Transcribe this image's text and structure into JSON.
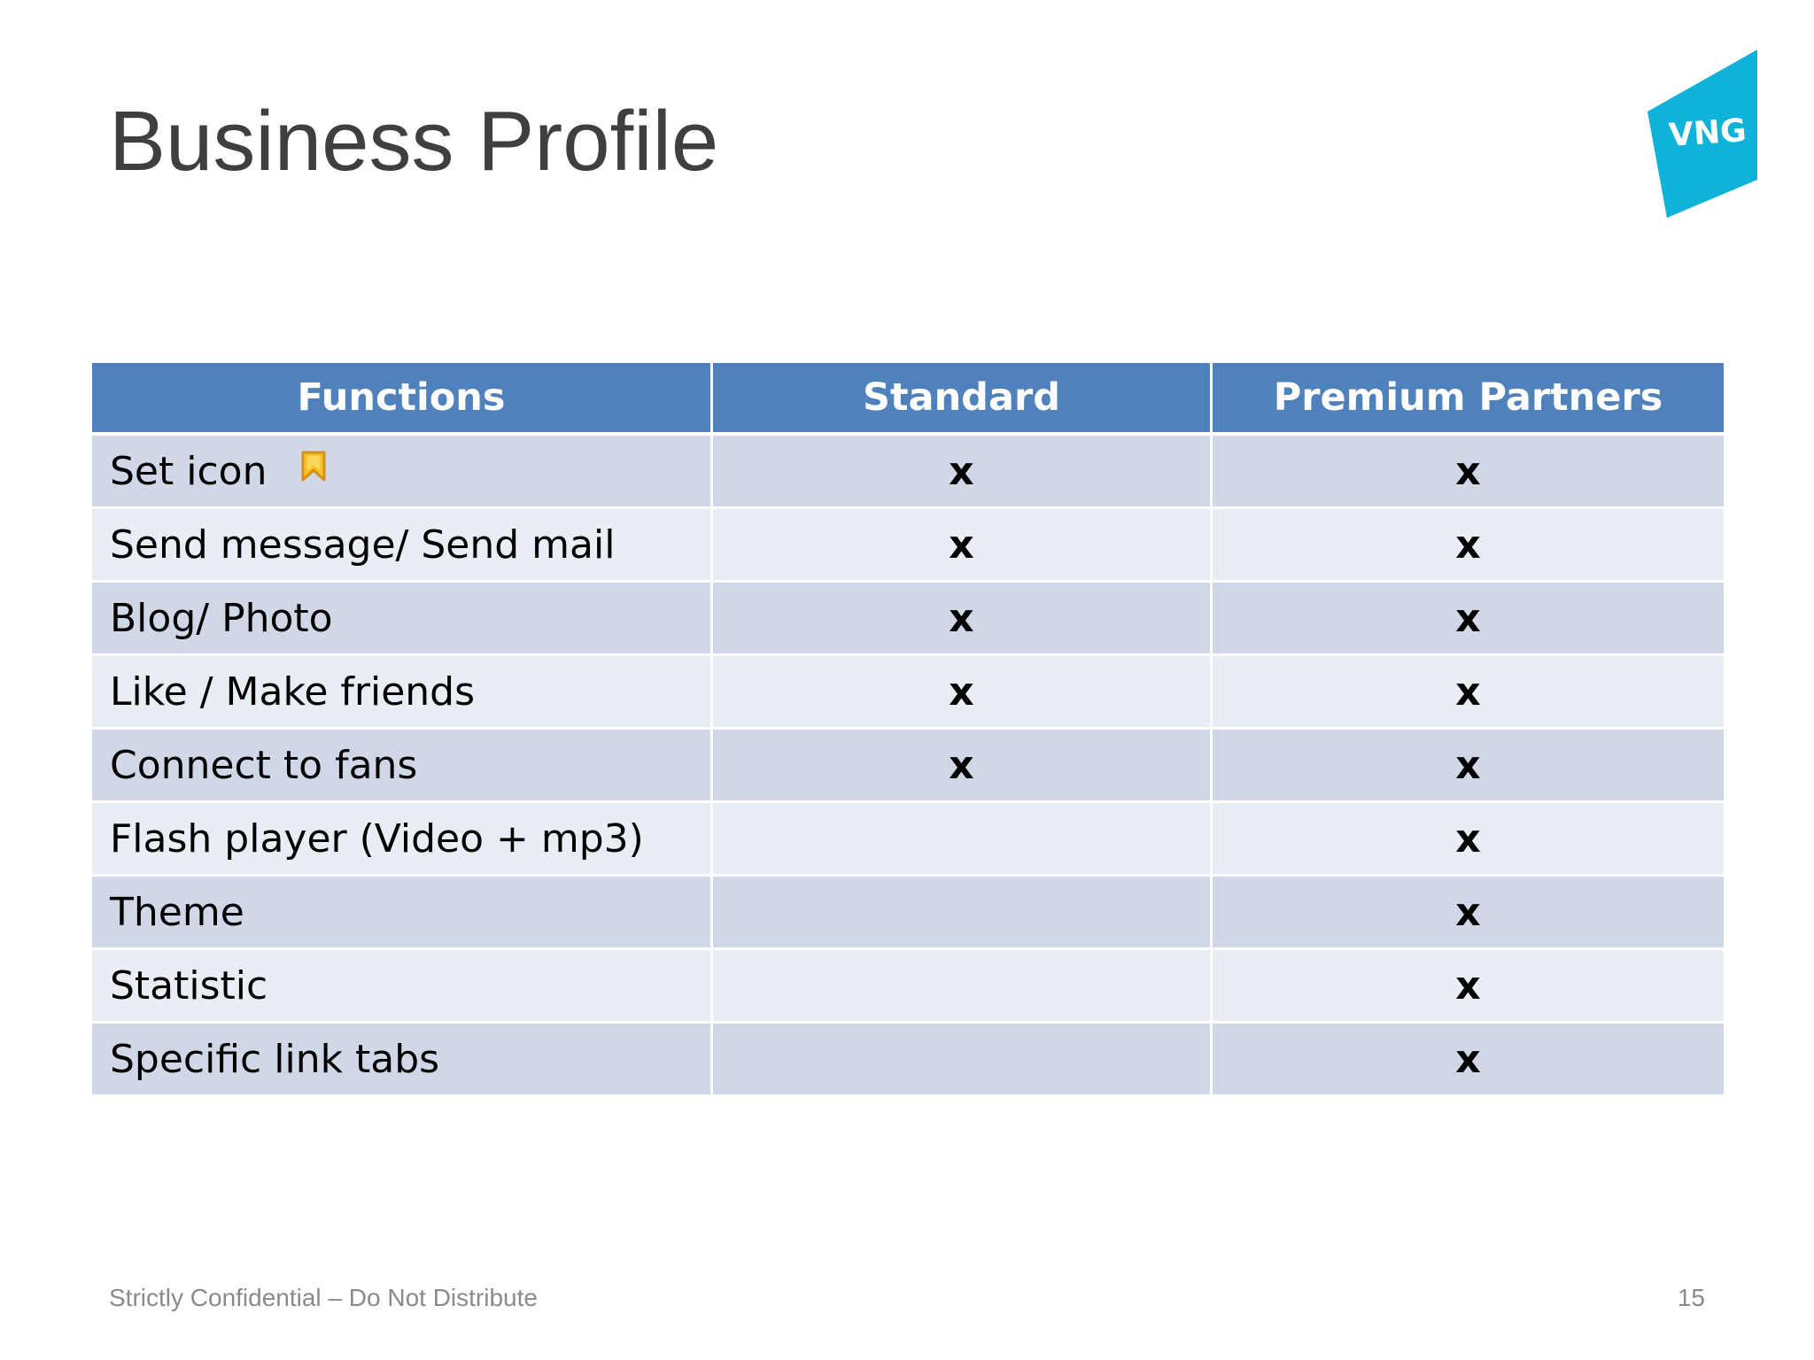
{
  "slide": {
    "title": "Business Profile",
    "logo_text": "VNG",
    "logo_color": "#0fb2d8",
    "footer_note": "Strictly Confidential – Do Not Distribute",
    "page_number": "15"
  },
  "table": {
    "header_color": "#4f81bd",
    "row_colors": [
      "#d0d8e8",
      "#e9edf4"
    ],
    "headers": {
      "functions": "Functions",
      "standard": "Standard",
      "premium": "Premium Partners"
    },
    "rows": [
      {
        "function": "Set icon",
        "icon": "bookmark-icon",
        "standard": "x",
        "premium": "x"
      },
      {
        "function": "Send message/ Send mail",
        "standard": "x",
        "premium": "x"
      },
      {
        "function": "Blog/ Photo",
        "standard": "x",
        "premium": "x"
      },
      {
        "function": "Like / Make friends",
        "standard": "x",
        "premium": "x"
      },
      {
        "function": "Connect to fans",
        "standard": "x",
        "premium": "x"
      },
      {
        "function": "Flash player (Video + mp3)",
        "standard": "",
        "premium": "x"
      },
      {
        "function": "Theme",
        "standard": "",
        "premium": "x"
      },
      {
        "function": "Statistic",
        "standard": "",
        "premium": "x"
      },
      {
        "function": "Specific link tabs",
        "standard": "",
        "premium": "x"
      }
    ]
  }
}
